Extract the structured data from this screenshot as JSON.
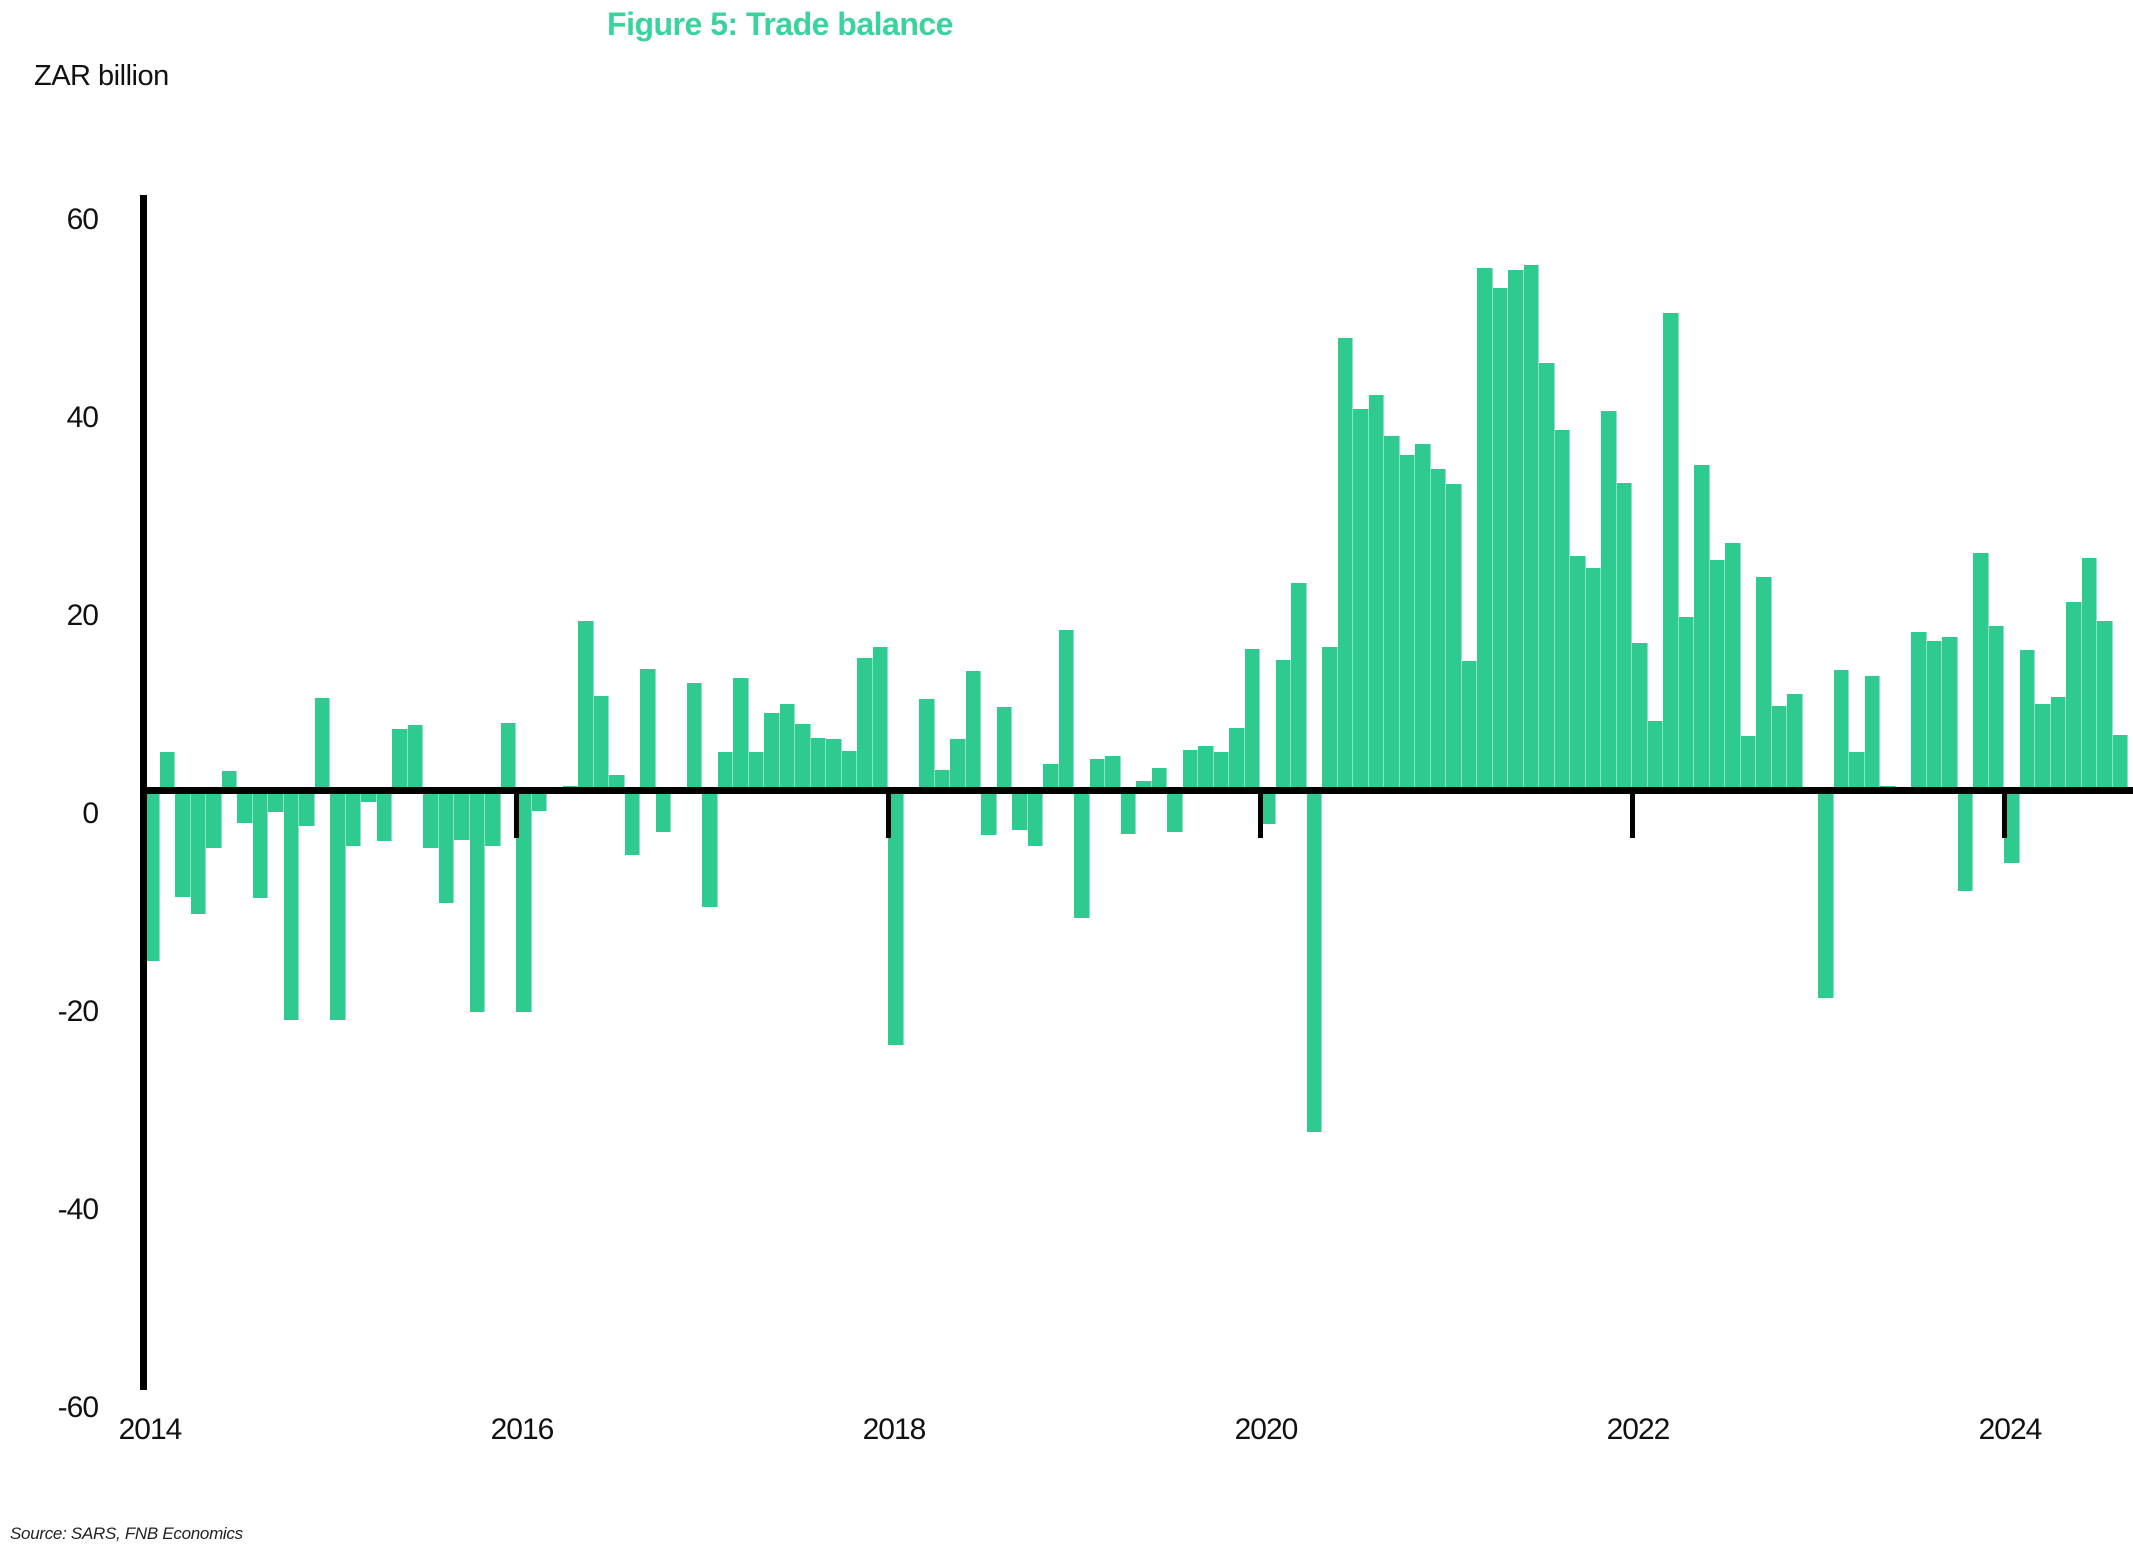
{
  "title": "Figure 5: Trade balance",
  "y_axis_label": "ZAR billion",
  "source_note": "Source: SARS, FNB Economics",
  "colors": {
    "bar": "#2fca90",
    "title": "#3bd39c",
    "axis": "#000000",
    "tick_text": "#111111"
  },
  "chart_data": {
    "type": "bar",
    "title": "Figure 5: Trade balance",
    "ylabel": "ZAR billion",
    "xlabel": "",
    "ylim": [
      -60,
      60
    ],
    "y_ticks": [
      60,
      40,
      20,
      0,
      -20,
      -40,
      -60
    ],
    "x_tick_labels": [
      "2014",
      "2016",
      "2018",
      "2020",
      "2022",
      "2024"
    ],
    "grid": false,
    "legend": false,
    "frequency": "monthly",
    "start_month": "2014-01",
    "end_month": "2024-08",
    "series_name": "Trade balance (ZAR billion)",
    "values": [
      -17.3,
      3.8,
      -10.8,
      -12.5,
      -5.9,
      1.9,
      -3.3,
      -10.9,
      -2.2,
      -23.2,
      -3.6,
      9.3,
      -23.2,
      -5.7,
      -1.2,
      -5.2,
      6.2,
      6.6,
      -5.9,
      -11.4,
      -5.1,
      -22.4,
      -5.7,
      6.8,
      -22.4,
      -2.1,
      0.2,
      0.4,
      17.1,
      9.5,
      1.5,
      -6.6,
      12.2,
      -4.2,
      0.2,
      10.8,
      -11.8,
      3.8,
      11.3,
      3.8,
      7.8,
      8.7,
      6.7,
      5.3,
      5.2,
      3.9,
      13.3,
      14.4,
      -25.8,
      0.2,
      9.2,
      2.0,
      5.2,
      12.0,
      -4.5,
      8.4,
      -4.0,
      -5.7,
      2.6,
      16.2,
      -12.9,
      3.1,
      3.4,
      -4.4,
      0.9,
      2.2,
      -4.2,
      4.0,
      4.4,
      3.8,
      6.3,
      14.2,
      -3.4,
      13.1,
      20.9,
      -34.5,
      14.4,
      45.7,
      38.5,
      39.9,
      35.8,
      33.8,
      34.9,
      32.4,
      30.9,
      13.0,
      52.7,
      50.7,
      52.5,
      53.0,
      43.1,
      36.4,
      23.6,
      22.4,
      38.3,
      31.0,
      14.8,
      7.0,
      48.2,
      17.5,
      32.8,
      23.2,
      24.9,
      5.5,
      21.5,
      8.5,
      9.7,
      0.3,
      -21.0,
      12.1,
      3.8,
      11.5,
      0.4,
      0.3,
      16.0,
      15.1,
      15.5,
      -10.2,
      23.9,
      16.6,
      -7.4,
      14.1,
      8.7,
      9.4,
      19.0,
      23.4,
      17.1,
      5.6
    ]
  }
}
